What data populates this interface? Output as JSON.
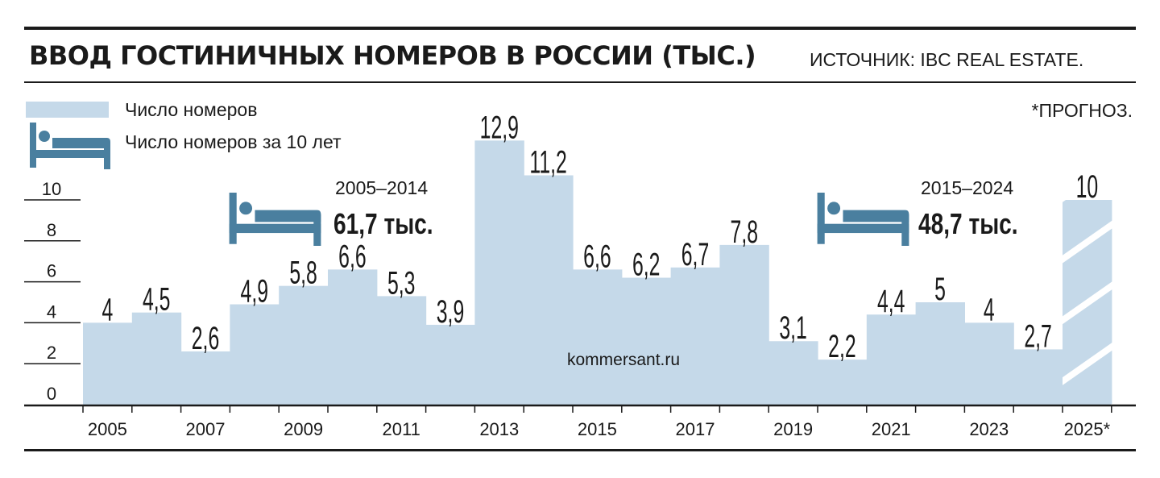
{
  "header": {
    "title": "ВВОД ГОСТИНИЧНЫХ НОМЕРОВ В РОССИИ (ТЫС.)",
    "source": "ИСТОЧНИК: IBC REAL ESTATE."
  },
  "legend": {
    "bars_label": "Число номеров",
    "decade_label": "Число номеров за 10 лет"
  },
  "note": "*ПРОГНОЗ.",
  "periods": [
    {
      "years": "2005–2014",
      "total": "61,7 тыс."
    },
    {
      "years": "2015–2024",
      "total": "48,7 тыс."
    }
  ],
  "watermark": "kommersant.ru",
  "colors": {
    "bar": "#c5d9e9",
    "icon": "#4a7f9f",
    "text": "#1a1a1a",
    "forecast_stripe": "#ffffff"
  },
  "icons": {
    "legend_bar": "bar-swatch",
    "bed": "bed-icon"
  },
  "chart_data": {
    "type": "bar",
    "categories": [
      "2005",
      "2006",
      "2007",
      "2008",
      "2009",
      "2010",
      "2011",
      "2012",
      "2013",
      "2014",
      "2015",
      "2016",
      "2017",
      "2018",
      "2019",
      "2020",
      "2021",
      "2022",
      "2023",
      "2024",
      "2025*"
    ],
    "x_tick_labels": [
      "2005",
      "2007",
      "2009",
      "2011",
      "2013",
      "2015",
      "2017",
      "2019",
      "2021",
      "2023",
      "2025*"
    ],
    "values": [
      4,
      4.5,
      2.6,
      4.9,
      5.8,
      6.6,
      5.3,
      3.9,
      12.9,
      11.2,
      6.6,
      6.2,
      6.7,
      7.8,
      3.1,
      2.2,
      4.4,
      5,
      4,
      2.7,
      10
    ],
    "value_labels": [
      "4",
      "4,5",
      "2,6",
      "4,9",
      "5,8",
      "6,6",
      "5,3",
      "3,9",
      "12,9",
      "11,2",
      "6,6",
      "6,2",
      "6,7",
      "7,8",
      "3,1",
      "2,2",
      "4,4",
      "5",
      "4",
      "2,7",
      "10"
    ],
    "forecast": [
      false,
      false,
      false,
      false,
      false,
      false,
      false,
      false,
      false,
      false,
      false,
      false,
      false,
      false,
      false,
      false,
      false,
      false,
      false,
      false,
      true
    ],
    "y_ticks": [
      "0",
      "2",
      "4",
      "6",
      "8",
      "10"
    ],
    "ylim": [
      0,
      10
    ],
    "grid": false,
    "legend_position": "top-left",
    "title": "ВВОД ГОСТИНИЧНЫХ НОМЕРОВ В РОССИИ (ТЫС.)",
    "xlabel": "",
    "ylabel": ""
  }
}
